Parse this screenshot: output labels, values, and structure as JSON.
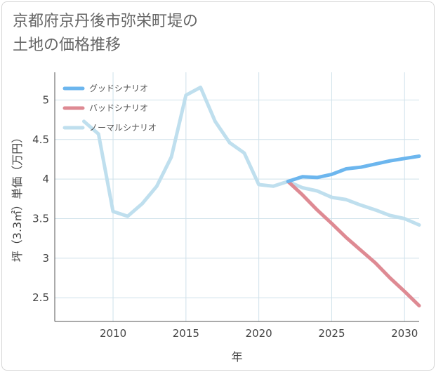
{
  "title_lines": [
    "京都府京丹後市弥栄町堤の",
    "土地の価格推移"
  ],
  "chart_data": {
    "type": "line",
    "title": "京都府京丹後市弥栄町堤の土地の価格推移",
    "xlabel": "年",
    "ylabel": "坪（3.3㎡）単価（万円）",
    "xlim": [
      2006,
      2031
    ],
    "ylim": [
      2.2,
      5.35
    ],
    "x_ticks": [
      2010,
      2015,
      2020,
      2025,
      2030
    ],
    "y_ticks": [
      2.5,
      3,
      3.5,
      4,
      4.5,
      5
    ],
    "x_tick_labels": [
      "2010",
      "2015",
      "2020",
      "2025",
      "2030"
    ],
    "y_tick_labels": [
      "2.5",
      "3",
      "3.5",
      "4",
      "4.5",
      "5"
    ],
    "grid": true,
    "legend_position": "top-left",
    "series": [
      {
        "name": "グッドシナリオ",
        "color": "#6cb6ee",
        "x": [
          2022,
          2023,
          2024,
          2025,
          2026,
          2027,
          2028,
          2029,
          2030,
          2031
        ],
        "y": [
          3.97,
          4.03,
          4.02,
          4.06,
          4.13,
          4.15,
          4.19,
          4.23,
          4.26,
          4.29
        ]
      },
      {
        "name": "バッドシナリオ",
        "color": "#de8a93",
        "x": [
          2022,
          2023,
          2024,
          2025,
          2026,
          2027,
          2028,
          2029,
          2030,
          2031
        ],
        "y": [
          3.97,
          3.8,
          3.61,
          3.44,
          3.26,
          3.1,
          2.94,
          2.75,
          2.58,
          2.4
        ]
      },
      {
        "name": "ノーマルシナリオ",
        "color": "#bfdfee",
        "x": [
          2008,
          2009,
          2010,
          2011,
          2012,
          2013,
          2014,
          2015,
          2016,
          2017,
          2018,
          2019,
          2020,
          2021,
          2022,
          2023,
          2024,
          2025,
          2026,
          2027,
          2028,
          2029,
          2030,
          2031
        ],
        "y": [
          4.73,
          4.57,
          3.59,
          3.53,
          3.69,
          3.91,
          4.28,
          5.06,
          5.16,
          4.73,
          4.46,
          4.33,
          3.93,
          3.91,
          3.97,
          3.89,
          3.85,
          3.77,
          3.74,
          3.67,
          3.61,
          3.54,
          3.5,
          3.42
        ]
      }
    ]
  }
}
